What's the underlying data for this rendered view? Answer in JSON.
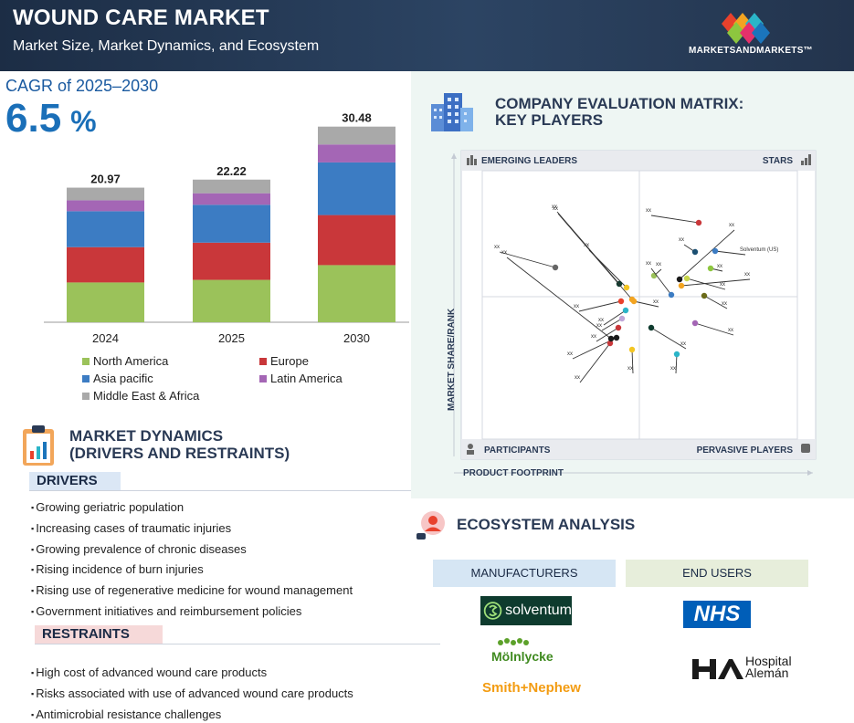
{
  "header": {
    "title": "WOUND CARE MARKET",
    "subtitle": "Market Size, Market Dynamics, and Ecosystem",
    "logo_text": "MARKETSANDMARKETS™"
  },
  "cagr": {
    "label": "CAGR of 2025–2030",
    "value": "6.5",
    "unit": "%"
  },
  "chart_data": {
    "type": "bar",
    "stacked": true,
    "categories": [
      "2024",
      "2025",
      "2030"
    ],
    "totals": [
      20.97,
      22.22,
      30.48
    ],
    "total_labels": [
      "20.97",
      "22.22",
      "30.48"
    ],
    "series": [
      {
        "name": "North America",
        "color": "#9bc25a",
        "values": [
          6.2,
          6.6,
          8.9
        ]
      },
      {
        "name": "Europe",
        "color": "#c9373a",
        "values": [
          5.5,
          5.8,
          7.8
        ]
      },
      {
        "name": "Asia pacific",
        "color": "#3c7cc3",
        "values": [
          5.6,
          5.9,
          8.2
        ]
      },
      {
        "name": "Latin America",
        "color": "#a466b5",
        "values": [
          1.7,
          1.8,
          2.8
        ]
      },
      {
        "name": "Middle East & Africa",
        "color": "#a9a9a9",
        "values": [
          1.97,
          2.12,
          2.78
        ]
      }
    ],
    "ylim": [
      0,
      32
    ],
    "grid": false
  },
  "market_dynamics": {
    "title_line1": "MARKET DYNAMICS",
    "title_line2": "(DRIVERS AND RESTRAINTS)",
    "drivers_label": "DRIVERS",
    "drivers": [
      "Growing geriatric population",
      "Increasing cases of traumatic injuries",
      "Growing prevalence of chronic diseases",
      "Rising incidence of burn injuries",
      "Rising use of regenerative medicine for wound management",
      "Government initiatives and reimbursement policies"
    ],
    "restraints_label": "RESTRAINTS",
    "restraints": [
      "High cost of advanced wound care products",
      "Risks associated with use of advanced wound care products",
      "Antimicrobial resistance challenges"
    ]
  },
  "matrix": {
    "title_line1": "COMPANY EVALUATION MATRIX:",
    "title_line2": "KEY PLAYERS",
    "q_top_left": "EMERGING LEADERS",
    "q_top_right": "STARS",
    "q_bottom_left": "PARTICIPANTS",
    "q_bottom_right": "PERVASIVE PLAYERS",
    "y_axis": "MARKET SHARE/RANK",
    "x_axis": "PRODUCT FOOTPRINT",
    "placeholder_label": "xx",
    "named_label": "Solventum (US)"
  },
  "ecosystem": {
    "title": "ECOSYSTEM ANALYSIS",
    "manufacturers_label": "MANUFACTURERS",
    "end_users_label": "END USERS",
    "manufacturers": [
      "solventum",
      "Mölnlycke",
      "Smith+Nephew"
    ],
    "end_users": [
      "NHS",
      "Hospital Alemán"
    ]
  }
}
